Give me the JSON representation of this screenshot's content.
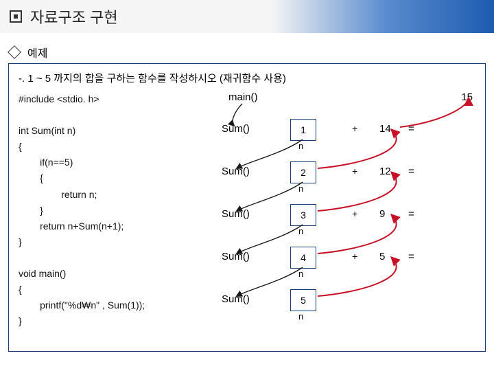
{
  "title": "자료구조 구현",
  "subtitle": "예제",
  "prompt": "-. 1 ~ 5 까지의 합을 구하는 함수를 작성하시오 (재귀함수 사용)",
  "code_include": "#include <stdio. h>",
  "code_fn1_1": "int Sum(int n)",
  "code_fn1_2": "{",
  "code_fn1_3": "        if(n==5)",
  "code_fn1_4": "        {",
  "code_fn1_5": "                return n;",
  "code_fn1_6": "        }",
  "code_fn1_7": "        return n+Sum(n+1);",
  "code_fn1_8": "}",
  "code_fn2_1": "void main()",
  "code_fn2_2": "{",
  "code_fn2_3": "        printf(\"%d₩n\" , Sum(1));",
  "code_fn2_4": "}",
  "main_label": "main()",
  "result": "15",
  "sum_label": "Sum()",
  "n_label": "n",
  "plus": "+",
  "eq": "=",
  "rows": [
    {
      "n": "1",
      "ret": "14"
    },
    {
      "n": "2",
      "ret": "12"
    },
    {
      "n": "3",
      "ret": "9"
    },
    {
      "n": "4",
      "ret": "5"
    },
    {
      "n": "5",
      "ret": ""
    }
  ],
  "layout": {
    "row_top_start": 40,
    "row_spacing": 62
  },
  "colors": {
    "arrow_call": "#1a1a1a",
    "arrow_return": "#c81026",
    "border": "#1a3c6e"
  }
}
